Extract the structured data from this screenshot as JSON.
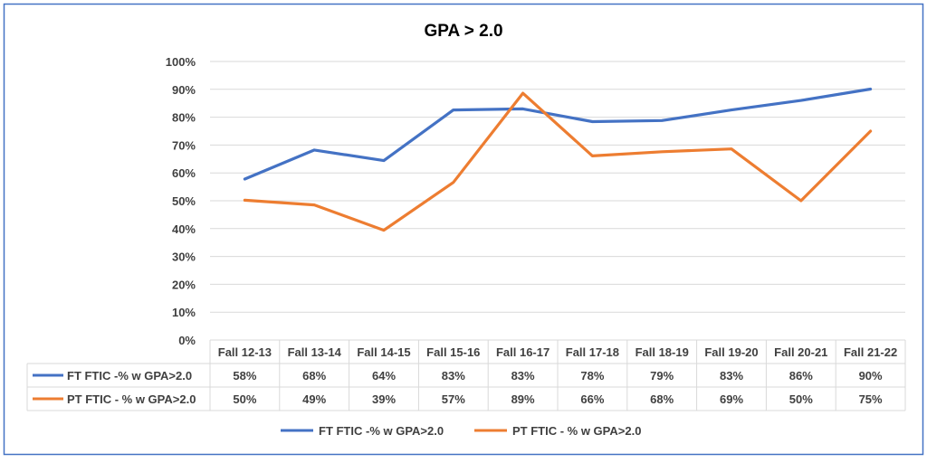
{
  "chart_data": {
    "type": "line",
    "title": "GPA > 2.0",
    "categories": [
      "Fall 12-13",
      "Fall 13-14",
      "Fall 14-15",
      "Fall 15-16",
      "Fall 16-17",
      "Fall 17-18",
      "Fall 18-19",
      "Fall 19-20",
      "Fall 20-21",
      "Fall 21-22"
    ],
    "ylim": [
      0,
      100
    ],
    "yticks": [
      "0%",
      "10%",
      "20%",
      "30%",
      "40%",
      "50%",
      "60%",
      "70%",
      "80%",
      "90%",
      "100%"
    ],
    "grid": true,
    "legend_position": "bottom",
    "series": [
      {
        "name": "FT FTIC -% w GPA>2.0",
        "color": "#4472C4",
        "values": [
          57.8,
          68.2,
          64.4,
          82.6,
          83.0,
          78.4,
          78.8,
          82.6,
          86.0,
          90.1
        ],
        "table_values": [
          "58%",
          "68%",
          "64%",
          "83%",
          "83%",
          "78%",
          "79%",
          "83%",
          "86%",
          "90%"
        ]
      },
      {
        "name": "PT FTIC - % w GPA>2.0",
        "color": "#ED7D31",
        "values": [
          50.2,
          48.5,
          39.4,
          56.6,
          88.6,
          66.1,
          67.6,
          68.6,
          50.0,
          75.0
        ],
        "table_values": [
          "50%",
          "49%",
          "39%",
          "57%",
          "89%",
          "66%",
          "68%",
          "69%",
          "50%",
          "75%"
        ]
      }
    ]
  }
}
